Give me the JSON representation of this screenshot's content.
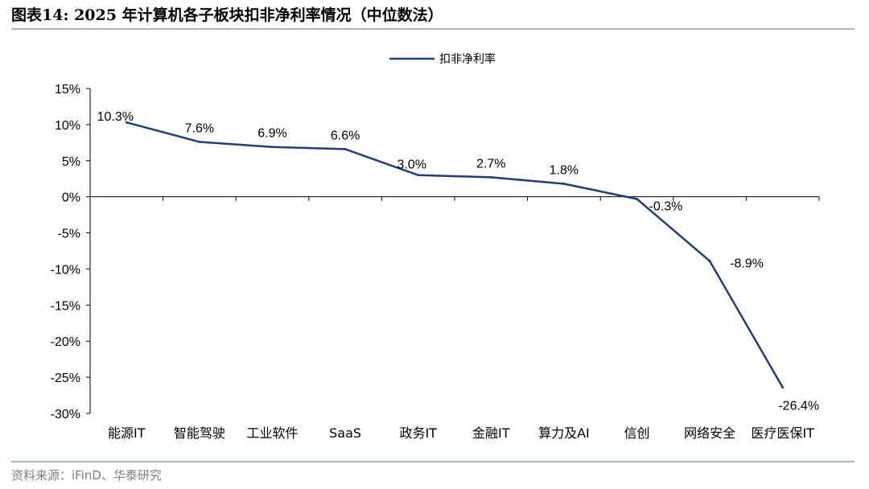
{
  "header": {
    "title": "图表14:  2025 年计算机各子板块扣非净利率情况（中位数法）"
  },
  "footer": {
    "source": "资料来源：iFinD、华泰研究"
  },
  "colors": {
    "line": "#1f3f77",
    "rule": "#a9b7cc",
    "source_text": "#7f7f7f"
  },
  "chart_data": {
    "type": "line",
    "title": "",
    "xlabel": "",
    "ylabel": "",
    "categories": [
      "能源IT",
      "智能驾驶",
      "工业软件",
      "SaaS",
      "政务IT",
      "金融IT",
      "算力及AI",
      "信创",
      "网络安全",
      "医疗医保IT"
    ],
    "series": [
      {
        "name": "扣非净利率",
        "values": [
          10.3,
          7.6,
          6.9,
          6.6,
          3.0,
          2.7,
          1.8,
          -0.3,
          -8.9,
          -26.4
        ],
        "labels": [
          "10.3%",
          "7.6%",
          "6.9%",
          "6.6%",
          "3.0%",
          "2.7%",
          "1.8%",
          "-0.3%",
          "-8.9%",
          "-26.4%"
        ]
      }
    ],
    "ylim": [
      -30,
      15
    ],
    "yticks": [
      15,
      10,
      5,
      0,
      -5,
      -10,
      -15,
      -20,
      -25,
      -30
    ],
    "ytick_labels": [
      "15%",
      "10%",
      "5%",
      "0%",
      "-5%",
      "-10%",
      "-15%",
      "-20%",
      "-25%",
      "-30%"
    ],
    "legend": "top-center",
    "grid": false
  }
}
